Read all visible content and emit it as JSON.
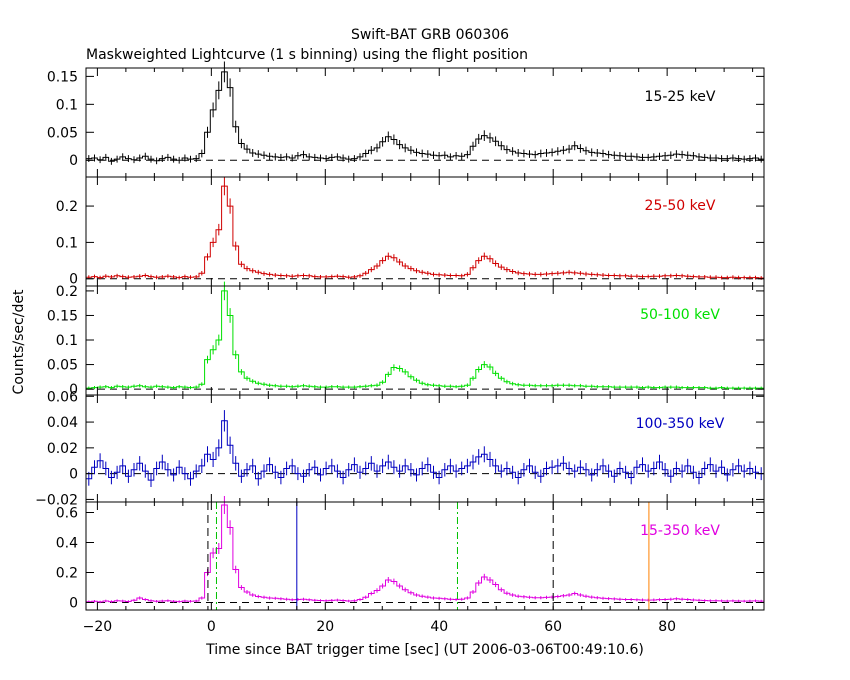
{
  "title": "Swift-BAT GRB 060306",
  "subtitle": "Maskweighted Lightcurve (1 s binning) using the flight position",
  "xlabel": "Time since BAT trigger time [sec] (UT 2006-03-06T00:49:10.6)",
  "ylabel": "Counts/sec/det",
  "xlim": [
    -22,
    97
  ],
  "xticks": [
    -20,
    0,
    20,
    40,
    60,
    80
  ],
  "colors": {
    "axes": "#000000",
    "band1": "#000000",
    "band2": "#d00000",
    "band3": "#00e000",
    "band4": "#0000c0",
    "band5": "#e000e0",
    "line_blue": "#0000c0",
    "line_green": "#00c000",
    "line_orange": "#ff8000"
  },
  "chart_data": [
    {
      "type": "line",
      "band_label": "15-25 keV",
      "color_key": "band1",
      "ylim": [
        -0.03,
        0.165
      ],
      "yticks": [
        0,
        0.05,
        0.1,
        0.15
      ],
      "ytick_labels": [
        "0",
        "0.05",
        "0.1",
        "0.15"
      ],
      "noise": 0.006,
      "values": [
        0.003,
        0.004,
        0.001,
        0.005,
        -0.002,
        0.002,
        0.006,
        0.003,
        0.001,
        0.004,
        0.007,
        0.002,
        -0.001,
        0.003,
        0.005,
        0.002,
        0.0,
        0.004,
        0.002,
        0.003,
        0.012,
        0.05,
        0.09,
        0.125,
        0.158,
        0.13,
        0.06,
        0.03,
        0.02,
        0.013,
        0.011,
        0.009,
        0.007,
        0.006,
        0.005,
        0.006,
        0.004,
        0.008,
        0.01,
        0.006,
        0.005,
        0.004,
        0.003,
        0.005,
        0.006,
        0.004,
        0.002,
        0.003,
        0.006,
        0.012,
        0.018,
        0.022,
        0.033,
        0.042,
        0.037,
        0.028,
        0.022,
        0.018,
        0.014,
        0.012,
        0.011,
        0.009,
        0.008,
        0.009,
        0.006,
        0.008,
        0.007,
        0.01,
        0.025,
        0.038,
        0.044,
        0.04,
        0.034,
        0.026,
        0.019,
        0.016,
        0.013,
        0.012,
        0.011,
        0.01,
        0.012,
        0.013,
        0.014,
        0.016,
        0.018,
        0.02,
        0.026,
        0.021,
        0.017,
        0.014,
        0.013,
        0.012,
        0.01,
        0.009,
        0.008,
        0.007,
        0.007,
        0.006,
        0.005,
        0.005,
        0.006,
        0.007,
        0.008,
        0.009,
        0.011,
        0.01,
        0.009,
        0.008,
        0.006,
        0.005,
        0.004,
        0.004,
        0.003,
        0.003,
        0.004,
        0.003,
        0.002,
        0.003,
        0.004,
        0.002
      ]
    },
    {
      "type": "line",
      "band_label": "25-50 keV",
      "color_key": "band2",
      "ylim": [
        -0.02,
        0.28
      ],
      "yticks": [
        0,
        0.1,
        0.2
      ],
      "ytick_labels": [
        "0",
        "0.1",
        "0.2"
      ],
      "noise": 0.005,
      "values": [
        0.004,
        0.006,
        0.003,
        0.007,
        0.005,
        0.008,
        0.006,
        0.004,
        0.005,
        0.007,
        0.009,
        0.006,
        0.004,
        0.005,
        0.007,
        0.005,
        0.003,
        0.006,
        0.004,
        0.005,
        0.015,
        0.06,
        0.1,
        0.135,
        0.255,
        0.2,
        0.09,
        0.04,
        0.028,
        0.022,
        0.018,
        0.014,
        0.012,
        0.01,
        0.009,
        0.008,
        0.007,
        0.008,
        0.009,
        0.008,
        0.006,
        0.005,
        0.005,
        0.006,
        0.007,
        0.006,
        0.004,
        0.005,
        0.008,
        0.015,
        0.025,
        0.035,
        0.05,
        0.062,
        0.058,
        0.046,
        0.035,
        0.028,
        0.022,
        0.018,
        0.015,
        0.012,
        0.011,
        0.01,
        0.009,
        0.009,
        0.008,
        0.012,
        0.03,
        0.05,
        0.062,
        0.055,
        0.042,
        0.032,
        0.025,
        0.02,
        0.016,
        0.014,
        0.013,
        0.012,
        0.012,
        0.013,
        0.014,
        0.015,
        0.016,
        0.018,
        0.016,
        0.015,
        0.013,
        0.012,
        0.011,
        0.01,
        0.009,
        0.009,
        0.008,
        0.008,
        0.007,
        0.007,
        0.006,
        0.006,
        0.007,
        0.007,
        0.008,
        0.008,
        0.009,
        0.008,
        0.007,
        0.006,
        0.005,
        0.005,
        0.004,
        0.004,
        0.003,
        0.003,
        0.004,
        0.003,
        0.003,
        0.003,
        0.003,
        0.002
      ]
    },
    {
      "type": "line",
      "band_label": "50-100 keV",
      "color_key": "band3",
      "ylim": [
        -0.012,
        0.21
      ],
      "yticks": [
        0,
        0.05,
        0.1,
        0.15,
        0.2
      ],
      "ytick_labels": [
        "0",
        "0.05",
        "0.1",
        "0.15",
        "0.2"
      ],
      "noise": 0.003,
      "values": [
        0.002,
        0.003,
        0.004,
        0.005,
        0.003,
        0.006,
        0.005,
        0.004,
        0.006,
        0.007,
        0.005,
        0.004,
        0.006,
        0.005,
        0.004,
        0.003,
        0.005,
        0.004,
        0.003,
        0.004,
        0.01,
        0.06,
        0.08,
        0.1,
        0.2,
        0.15,
        0.07,
        0.035,
        0.022,
        0.016,
        0.012,
        0.01,
        0.008,
        0.007,
        0.006,
        0.006,
        0.005,
        0.006,
        0.007,
        0.006,
        0.005,
        0.004,
        0.004,
        0.005,
        0.005,
        0.004,
        0.004,
        0.004,
        0.005,
        0.006,
        0.007,
        0.008,
        0.014,
        0.03,
        0.044,
        0.042,
        0.035,
        0.025,
        0.018,
        0.012,
        0.009,
        0.008,
        0.007,
        0.006,
        0.006,
        0.005,
        0.006,
        0.008,
        0.022,
        0.04,
        0.05,
        0.045,
        0.032,
        0.022,
        0.015,
        0.011,
        0.009,
        0.008,
        0.008,
        0.007,
        0.007,
        0.007,
        0.007,
        0.008,
        0.008,
        0.008,
        0.007,
        0.007,
        0.006,
        0.006,
        0.005,
        0.005,
        0.005,
        0.004,
        0.004,
        0.004,
        0.004,
        0.004,
        0.003,
        0.004,
        0.003,
        0.003,
        0.004,
        0.004,
        0.004,
        0.003,
        0.003,
        0.003,
        0.003,
        0.003,
        0.002,
        0.002,
        0.003,
        0.002,
        0.002,
        0.002,
        0.002,
        0.002,
        0.002,
        0.002
      ]
    },
    {
      "type": "line",
      "band_label": "100-350 keV",
      "color_key": "band4",
      "ylim": [
        -0.022,
        0.061
      ],
      "yticks": [
        -0.02,
        0,
        0.02,
        0.04,
        0.06
      ],
      "ytick_labels": [
        "−0.02",
        "0",
        "0.02",
        "0.04",
        "0.06"
      ],
      "noise": 0.005,
      "values": [
        -0.004,
        0.005,
        0.01,
        0.004,
        -0.003,
        0.001,
        0.006,
        -0.002,
        0.003,
        0.008,
        0.002,
        -0.005,
        0.004,
        0.009,
        0.003,
        -0.001,
        0.005,
        0.0,
        -0.004,
        0.002,
        0.006,
        0.015,
        0.011,
        0.02,
        0.041,
        0.022,
        0.008,
        -0.002,
        0.003,
        0.006,
        -0.004,
        0.002,
        0.007,
        0.001,
        -0.003,
        0.004,
        0.006,
        0.0,
        -0.002,
        0.003,
        0.005,
        -0.001,
        0.004,
        0.006,
        0.002,
        -0.003,
        0.003,
        0.007,
        0.001,
        0.004,
        0.008,
        0.002,
        0.006,
        0.009,
        0.005,
        0.002,
        0.006,
        0.003,
        -0.001,
        0.004,
        0.007,
        0.001,
        -0.003,
        0.003,
        0.006,
        0.002,
        0.004,
        0.006,
        0.009,
        0.013,
        0.015,
        0.011,
        0.006,
        0.002,
        0.004,
        0.001,
        -0.003,
        0.003,
        0.006,
        0.001,
        -0.002,
        0.004,
        0.005,
        0.006,
        0.008,
        0.004,
        0.002,
        0.005,
        0.003,
        -0.001,
        0.003,
        0.006,
        0.002,
        -0.002,
        0.004,
        0.001,
        -0.003,
        0.005,
        0.007,
        0.002,
        0.004,
        0.009,
        0.003,
        -0.002,
        0.004,
        0.002,
        0.006,
        0.001,
        -0.003,
        0.004,
        0.007,
        0.002,
        0.005,
        -0.001,
        0.003,
        0.006,
        0.002,
        0.004,
        0.001,
        0.0
      ]
    },
    {
      "type": "line",
      "band_label": "15-350 keV",
      "color_key": "band5",
      "ylim": [
        -0.05,
        0.67
      ],
      "yticks": [
        0,
        0.2,
        0.4,
        0.6
      ],
      "ytick_labels": [
        "0",
        "0.2",
        "0.4",
        "0.6"
      ],
      "noise": 0.008,
      "values": [
        0.005,
        0.008,
        0.004,
        0.01,
        0.006,
        0.012,
        0.01,
        0.007,
        0.015,
        0.03,
        0.02,
        0.012,
        0.008,
        0.01,
        0.012,
        0.008,
        0.006,
        0.01,
        0.008,
        0.01,
        0.03,
        0.2,
        0.33,
        0.36,
        0.65,
        0.5,
        0.22,
        0.1,
        0.07,
        0.05,
        0.04,
        0.035,
        0.03,
        0.028,
        0.025,
        0.022,
        0.018,
        0.02,
        0.022,
        0.018,
        0.015,
        0.013,
        0.012,
        0.014,
        0.016,
        0.013,
        0.01,
        0.012,
        0.02,
        0.035,
        0.06,
        0.08,
        0.11,
        0.15,
        0.14,
        0.11,
        0.085,
        0.065,
        0.05,
        0.042,
        0.036,
        0.03,
        0.028,
        0.025,
        0.022,
        0.02,
        0.022,
        0.03,
        0.07,
        0.13,
        0.17,
        0.15,
        0.12,
        0.085,
        0.062,
        0.05,
        0.042,
        0.038,
        0.035,
        0.032,
        0.032,
        0.034,
        0.036,
        0.04,
        0.045,
        0.05,
        0.06,
        0.05,
        0.042,
        0.036,
        0.032,
        0.028,
        0.026,
        0.024,
        0.022,
        0.02,
        0.02,
        0.018,
        0.017,
        0.016,
        0.017,
        0.019,
        0.02,
        0.022,
        0.025,
        0.022,
        0.02,
        0.017,
        0.015,
        0.013,
        0.012,
        0.012,
        0.011,
        0.01,
        0.011,
        0.01,
        0.009,
        0.01,
        0.011,
        0.009
      ]
    }
  ],
  "marker_lines": [
    {
      "x": -0.6,
      "style": "dashed",
      "color_key": "axes"
    },
    {
      "x": 0.9,
      "style": "dashdot",
      "color_key": "line_green"
    },
    {
      "x": 15.0,
      "style": "solid",
      "color_key": "line_blue"
    },
    {
      "x": 43.2,
      "style": "dashdot",
      "color_key": "line_green"
    },
    {
      "x": 60.0,
      "style": "dashed",
      "color_key": "axes"
    },
    {
      "x": 76.8,
      "style": "solid",
      "color_key": "line_orange"
    }
  ]
}
